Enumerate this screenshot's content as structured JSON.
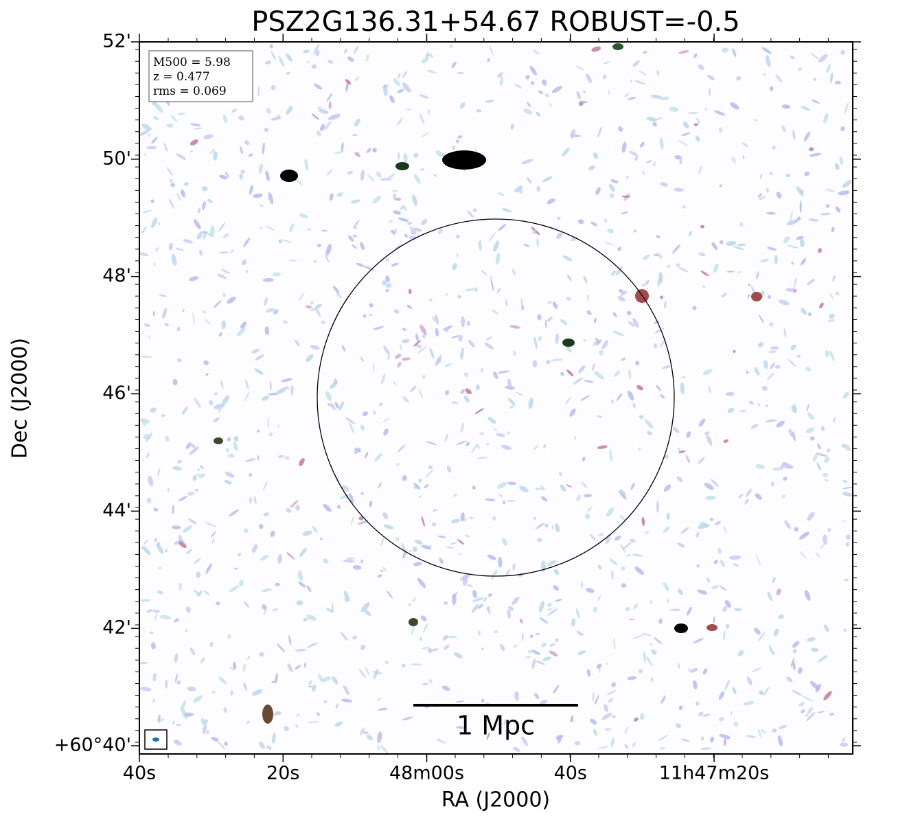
{
  "chart_data": {
    "type": "image",
    "title": "PSZ2G136.31+54.67 ROBUST=-0.5",
    "x_label": "RA (J2000)",
    "y_label": "Dec (J2000)",
    "xlim": [
      100,
      0.7
    ],
    "xticks": [
      {
        "value": 100,
        "label": "40s"
      },
      {
        "value": 80,
        "label": "20s"
      },
      {
        "value": 60,
        "label": "48m00s"
      },
      {
        "value": 40,
        "label": "40s"
      },
      {
        "value": 20,
        "label": "11h47m20s"
      }
    ],
    "ylim": [
      39.86,
      52.0
    ],
    "yticks": [
      {
        "value": 40,
        "label": "+60°40'"
      },
      {
        "value": 42,
        "label": "42'"
      },
      {
        "value": 44,
        "label": "44'"
      },
      {
        "value": 46,
        "label": "46'"
      },
      {
        "value": 48,
        "label": "48'"
      },
      {
        "value": 50,
        "label": "50'"
      },
      {
        "value": 52,
        "label": "52'"
      }
    ],
    "annotation": [
      "M500 = 5.98",
      "z = 0.477",
      "rms = 0.069"
    ],
    "scale_bar_label": "1 Mpc"
  }
}
